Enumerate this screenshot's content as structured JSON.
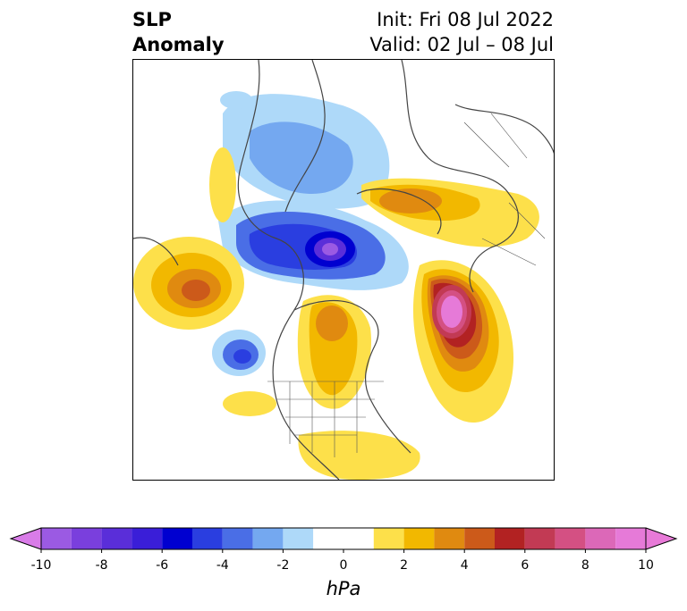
{
  "title": {
    "left_line1": "SLP",
    "left_line2": "Anomaly",
    "right_line1": "Init: Fri 08 Jul 2022",
    "right_line2": "Valid: 02 Jul – 08 Jul"
  },
  "colorbar": {
    "units": "hPa",
    "ticks": [
      "-10",
      "-8",
      "-6",
      "-4",
      "-2",
      "0",
      "2",
      "4",
      "6",
      "8",
      "10"
    ],
    "extend": "both",
    "under_color": "#d97ce8",
    "over_color": "#e87ad8",
    "bins": [
      {
        "from": -10,
        "to": -9,
        "color": "#9b5ae3"
      },
      {
        "from": -9,
        "to": -8,
        "color": "#7a3fdd"
      },
      {
        "from": -8,
        "to": -7,
        "color": "#5a2ed9"
      },
      {
        "from": -7,
        "to": -6,
        "color": "#3a1ed8"
      },
      {
        "from": -6,
        "to": -5,
        "color": "#0000d0"
      },
      {
        "from": -5,
        "to": -4,
        "color": "#2a3ee0"
      },
      {
        "from": -4,
        "to": -3,
        "color": "#4a6ee6"
      },
      {
        "from": -3,
        "to": -2,
        "color": "#74a8f0"
      },
      {
        "from": -2,
        "to": -1,
        "color": "#aed9f9"
      },
      {
        "from": -1,
        "to": 1,
        "color": "#ffffff"
      },
      {
        "from": 1,
        "to": 2,
        "color": "#fde04a"
      },
      {
        "from": 2,
        "to": 3,
        "color": "#f2b800"
      },
      {
        "from": 3,
        "to": 4,
        "color": "#e08a10"
      },
      {
        "from": 4,
        "to": 5,
        "color": "#cc5a1a"
      },
      {
        "from": 5,
        "to": 6,
        "color": "#b22222"
      },
      {
        "from": 6,
        "to": 7,
        "color": "#c23a54"
      },
      {
        "from": 7,
        "to": 8,
        "color": "#d45083"
      },
      {
        "from": 8,
        "to": 9,
        "color": "#dc68b8"
      },
      {
        "from": 9,
        "to": 10,
        "color": "#e67ad8"
      }
    ]
  }
}
